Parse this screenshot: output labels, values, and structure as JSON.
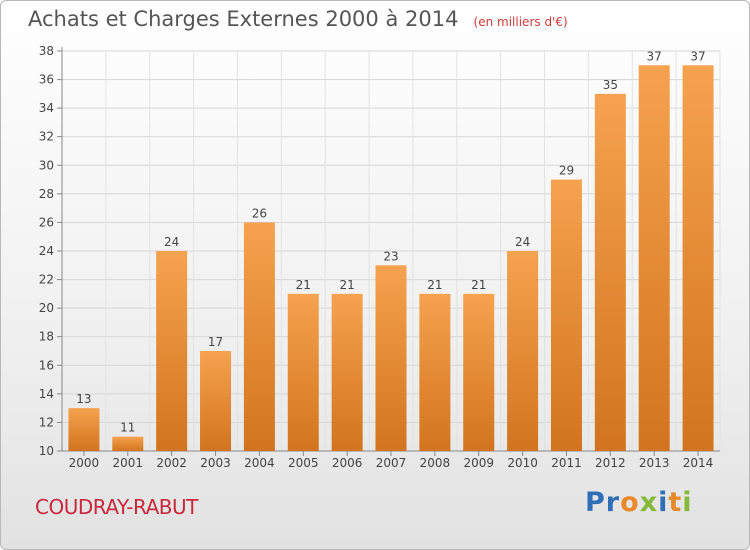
{
  "header": {
    "title": "Achats et Charges Externes 2000 à 2014",
    "subtitle": "(en milliers d'€)"
  },
  "footer": {
    "commune": "COUDRAY-RABUT",
    "brand": "Proxiti"
  },
  "colors": {
    "bar_light": "#f6a24e",
    "bar_dark": "#d2741f",
    "title": "#555555",
    "commune": "#c8283c",
    "brand_letters": [
      "#2f6fb6",
      "#2f6fb6",
      "#e8892a",
      "#86b83a",
      "#2f6fb6",
      "#e8892a",
      "#86b83a"
    ]
  },
  "chart_data": {
    "type": "bar",
    "title": "Achats et Charges Externes 2000 à 2014",
    "subtitle": "(en milliers d'€)",
    "categories": [
      "2000",
      "2001",
      "2002",
      "2003",
      "2004",
      "2005",
      "2006",
      "2007",
      "2008",
      "2009",
      "2010",
      "2011",
      "2012",
      "2013",
      "2014"
    ],
    "values": [
      13,
      11,
      24,
      17,
      26,
      21,
      21,
      23,
      21,
      21,
      24,
      29,
      35,
      37,
      37
    ],
    "ylim": [
      10,
      38
    ],
    "yticks": [
      10,
      12,
      14,
      16,
      18,
      20,
      22,
      24,
      26,
      28,
      30,
      32,
      34,
      36,
      38
    ],
    "grid": true,
    "legend": "none"
  }
}
